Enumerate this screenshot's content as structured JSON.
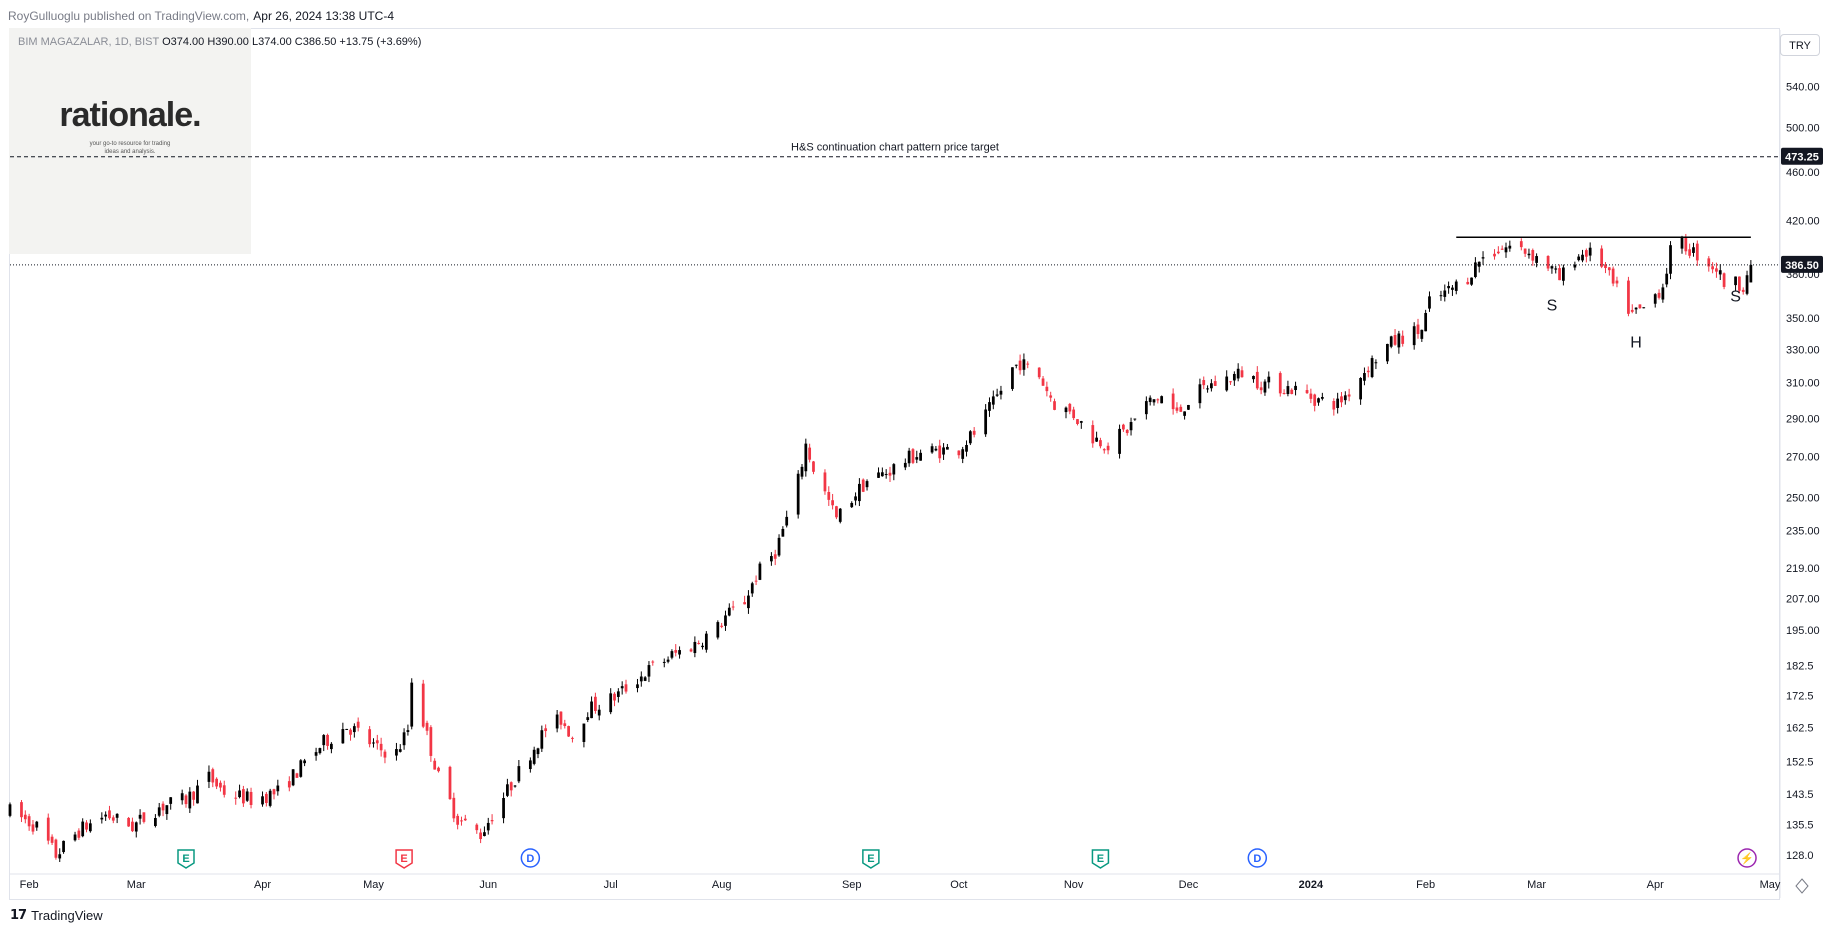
{
  "header": {
    "published_by": "RoyGulluoglu published on TradingView.com,",
    "date": "Apr 26, 2024 13:38 UTC-4"
  },
  "legend": {
    "symbol_muted": "BIM MAGAZALAR, 1D, BIST",
    "ohlc": "O374.00  H390.00  L374.00  C386.50  +13.75 (+3.69%)"
  },
  "logo": {
    "name": "rationale.",
    "tagline_1": "your go-to resource for trading",
    "tagline_2": "ideas and analysis."
  },
  "currency": "TRY",
  "footer": {
    "brand": "TradingView"
  },
  "colors": {
    "up": "#000000",
    "down": "#f23645",
    "event_earnings_green": "#089981",
    "event_earnings_red": "#f23645",
    "event_dividend": "#2962ff",
    "event_split": "#9c27b0"
  },
  "chart_data": {
    "type": "candlestick",
    "title": "",
    "scale": "log",
    "ylim": [
      124,
      600
    ],
    "x_range": [
      "2023-01-27",
      "2024-05-01"
    ],
    "y_ticks": [
      "540.00",
      "500.00",
      "460.00",
      "420.00",
      "380.00",
      "350.00",
      "330.00",
      "310.00",
      "290.00",
      "270.00",
      "250.00",
      "235.00",
      "219.00",
      "207.00",
      "195.00",
      "182.5",
      "172.5",
      "162.5",
      "152.5",
      "143.5",
      "135.5",
      "128.0"
    ],
    "x_ticks": [
      {
        "label": "Feb",
        "date": "2023-02-01"
      },
      {
        "label": "Mar",
        "date": "2023-03-01"
      },
      {
        "label": "Apr",
        "date": "2023-04-03"
      },
      {
        "label": "May",
        "date": "2023-05-02"
      },
      {
        "label": "Jun",
        "date": "2023-06-01"
      },
      {
        "label": "Jul",
        "date": "2023-07-03"
      },
      {
        "label": "Aug",
        "date": "2023-08-01"
      },
      {
        "label": "Sep",
        "date": "2023-09-04"
      },
      {
        "label": "Oct",
        "date": "2023-10-02"
      },
      {
        "label": "Nov",
        "date": "2023-11-01"
      },
      {
        "label": "Dec",
        "date": "2023-12-01"
      },
      {
        "label": "2024",
        "date": "2024-01-02"
      },
      {
        "label": "Feb",
        "date": "2024-02-01"
      },
      {
        "label": "Mar",
        "date": "2024-03-01"
      },
      {
        "label": "Apr",
        "date": "2024-04-01"
      },
      {
        "label": "May",
        "date": "2024-05-01"
      }
    ],
    "last_price": 386.5,
    "last_price_label": "386.50",
    "target_price": 473.25,
    "target_price_label": "473.25",
    "target_text": "H&S continuation chart pattern price target",
    "neckline": {
      "from": "2024-02-09",
      "to": "2024-04-26",
      "price": 407
    },
    "pattern_labels": [
      {
        "text": "S",
        "date": "2024-03-05",
        "price": 355
      },
      {
        "text": "H",
        "date": "2024-03-27",
        "price": 331
      },
      {
        "text": "S",
        "date": "2024-04-22",
        "price": 361
      }
    ],
    "events": [
      {
        "type": "E",
        "color": "green",
        "date": "2023-03-14"
      },
      {
        "type": "E",
        "color": "red",
        "date": "2023-05-10"
      },
      {
        "type": "D",
        "color": "blue",
        "date": "2023-06-12"
      },
      {
        "type": "E",
        "color": "green",
        "date": "2023-09-09"
      },
      {
        "type": "E",
        "color": "green",
        "date": "2023-11-08"
      },
      {
        "type": "D",
        "color": "blue",
        "date": "2023-12-19"
      },
      {
        "type": "split",
        "color": "purple",
        "date": "2024-04-25"
      }
    ],
    "close_points": [
      [
        "2023-01-27",
        139
      ],
      [
        "2023-02-03",
        135
      ],
      [
        "2023-02-08",
        128
      ],
      [
        "2023-02-14",
        134
      ],
      [
        "2023-02-21",
        138
      ],
      [
        "2023-02-28",
        135
      ],
      [
        "2023-03-07",
        140
      ],
      [
        "2023-03-14",
        142
      ],
      [
        "2023-03-20",
        148
      ],
      [
        "2023-03-24",
        144
      ],
      [
        "2023-03-31",
        142
      ],
      [
        "2023-04-07",
        144
      ],
      [
        "2023-04-14",
        152
      ],
      [
        "2023-04-19",
        158
      ],
      [
        "2023-04-25",
        163
      ],
      [
        "2023-04-28",
        161
      ],
      [
        "2023-05-03",
        156
      ],
      [
        "2023-05-08",
        155
      ],
      [
        "2023-05-11",
        162
      ],
      [
        "2023-05-12",
        178
      ],
      [
        "2023-05-16",
        160
      ],
      [
        "2023-05-19",
        148
      ],
      [
        "2023-05-24",
        137
      ],
      [
        "2023-05-30",
        133
      ],
      [
        "2023-06-02",
        138
      ],
      [
        "2023-06-07",
        146
      ],
      [
        "2023-06-12",
        155
      ],
      [
        "2023-06-16",
        162
      ],
      [
        "2023-06-20",
        165
      ],
      [
        "2023-06-23",
        160
      ],
      [
        "2023-06-27",
        168
      ],
      [
        "2023-07-04",
        172
      ],
      [
        "2023-07-10",
        178
      ],
      [
        "2023-07-14",
        182
      ],
      [
        "2023-07-19",
        186
      ],
      [
        "2023-07-25",
        190
      ],
      [
        "2023-07-31",
        196
      ],
      [
        "2023-08-02",
        200
      ],
      [
        "2023-08-07",
        206
      ],
      [
        "2023-08-10",
        216
      ],
      [
        "2023-08-15",
        226
      ],
      [
        "2023-08-18",
        240
      ],
      [
        "2023-08-21",
        258
      ],
      [
        "2023-08-23",
        276
      ],
      [
        "2023-08-25",
        264
      ],
      [
        "2023-08-29",
        248
      ],
      [
        "2023-08-31",
        240
      ],
      [
        "2023-09-05",
        252
      ],
      [
        "2023-09-08",
        258
      ],
      [
        "2023-09-13",
        262
      ],
      [
        "2023-09-18",
        268
      ],
      [
        "2023-09-22",
        272
      ],
      [
        "2023-09-27",
        273
      ],
      [
        "2023-10-02",
        274
      ],
      [
        "2023-10-06",
        282
      ],
      [
        "2023-10-11",
        298
      ],
      [
        "2023-10-16",
        318
      ],
      [
        "2023-10-18",
        322
      ],
      [
        "2023-10-23",
        314
      ],
      [
        "2023-10-27",
        298
      ],
      [
        "2023-11-01",
        292
      ],
      [
        "2023-11-06",
        280
      ],
      [
        "2023-11-10",
        276
      ],
      [
        "2023-11-15",
        284
      ],
      [
        "2023-11-20",
        298
      ],
      [
        "2023-11-24",
        302
      ],
      [
        "2023-11-28",
        292
      ],
      [
        "2023-12-01",
        300
      ],
      [
        "2023-12-06",
        308
      ],
      [
        "2023-12-11",
        312
      ],
      [
        "2023-12-15",
        316
      ],
      [
        "2023-12-20",
        310
      ],
      [
        "2023-12-25",
        308
      ],
      [
        "2023-12-29",
        306
      ],
      [
        "2024-01-04",
        300
      ],
      [
        "2024-01-09",
        298
      ],
      [
        "2024-01-12",
        305
      ],
      [
        "2024-01-17",
        320
      ],
      [
        "2024-01-22",
        332
      ],
      [
        "2024-01-26",
        338
      ],
      [
        "2024-01-31",
        342
      ],
      [
        "2024-02-02",
        360
      ],
      [
        "2024-02-07",
        368
      ],
      [
        "2024-02-12",
        378
      ],
      [
        "2024-02-15",
        390
      ],
      [
        "2024-02-20",
        398
      ],
      [
        "2024-02-23",
        400
      ],
      [
        "2024-02-28",
        396
      ],
      [
        "2024-03-04",
        386
      ],
      [
        "2024-03-07",
        376
      ],
      [
        "2024-03-11",
        392
      ],
      [
        "2024-03-14",
        396
      ],
      [
        "2024-03-18",
        388
      ],
      [
        "2024-03-21",
        372
      ],
      [
        "2024-03-26",
        352
      ],
      [
        "2024-03-29",
        356
      ],
      [
        "2024-04-03",
        372
      ],
      [
        "2024-04-05",
        396
      ],
      [
        "2024-04-08",
        402
      ],
      [
        "2024-04-12",
        394
      ],
      [
        "2024-04-17",
        384
      ],
      [
        "2024-04-19",
        374
      ],
      [
        "2024-04-24",
        373
      ],
      [
        "2024-04-26",
        386.5
      ]
    ]
  }
}
